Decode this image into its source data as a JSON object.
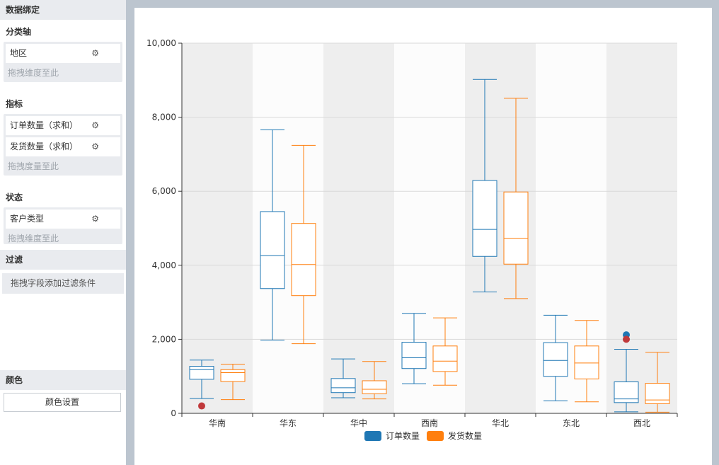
{
  "panel": {
    "data_binding": "数据绑定",
    "category_axis": {
      "title": "分类轴",
      "fields": [
        {
          "label": "地区"
        }
      ],
      "hint": "拖拽维度至此"
    },
    "metrics": {
      "title": "指标",
      "fields": [
        {
          "label": "订单数量（求和）"
        },
        {
          "label": "发货数量（求和）"
        }
      ],
      "hint": "拖拽度量至此"
    },
    "state": {
      "title": "状态",
      "fields": [
        {
          "label": "客户类型"
        }
      ],
      "hint": "拖拽维度至此"
    },
    "filter": {
      "title": "过滤",
      "hint": "拖拽字段添加过滤条件"
    },
    "color": {
      "title": "颜色",
      "button": "颜色设置"
    },
    "icons": {
      "gear": "gear-icon"
    }
  },
  "chart_data": {
    "type": "boxplot",
    "categories": [
      "华南",
      "华东",
      "华中",
      "西南",
      "华北",
      "东北",
      "西北"
    ],
    "ylim": [
      0,
      10000
    ],
    "yticks": [
      "0",
      "2,000",
      "4,000",
      "6,000",
      "8,000",
      "10,000"
    ],
    "grid": true,
    "legend_position": "bottom",
    "band_colors": [
      "#eeeeee",
      "#fcfcfc"
    ],
    "series": [
      {
        "name": "订单数量",
        "color": "#1f77b4",
        "boxes": [
          {
            "min": 400,
            "q1": 920,
            "median": 1180,
            "q3": 1270,
            "max": 1440
          },
          {
            "min": 1980,
            "q1": 3370,
            "median": 4260,
            "q3": 5450,
            "max": 7660
          },
          {
            "min": 420,
            "q1": 560,
            "median": 690,
            "q3": 940,
            "max": 1470
          },
          {
            "min": 800,
            "q1": 1210,
            "median": 1500,
            "q3": 1920,
            "max": 2700
          },
          {
            "min": 3280,
            "q1": 4240,
            "median": 4970,
            "q3": 6290,
            "max": 9020
          },
          {
            "min": 340,
            "q1": 1000,
            "median": 1430,
            "q3": 1910,
            "max": 2650
          },
          {
            "min": 40,
            "q1": 290,
            "median": 390,
            "q3": 850,
            "max": 1730
          }
        ],
        "outliers": [
          {
            "category": "西北",
            "value": 2120
          }
        ]
      },
      {
        "name": "发货数量",
        "color": "#ff7f0e",
        "boxes": [
          {
            "min": 370,
            "q1": 860,
            "median": 1100,
            "q3": 1180,
            "max": 1330
          },
          {
            "min": 1880,
            "q1": 3180,
            "median": 4020,
            "q3": 5130,
            "max": 7240
          },
          {
            "min": 390,
            "q1": 530,
            "median": 650,
            "q3": 880,
            "max": 1400
          },
          {
            "min": 760,
            "q1": 1130,
            "median": 1410,
            "q3": 1820,
            "max": 2580
          },
          {
            "min": 3100,
            "q1": 4030,
            "median": 4730,
            "q3": 5980,
            "max": 8510
          },
          {
            "min": 310,
            "q1": 930,
            "median": 1360,
            "q3": 1820,
            "max": 2510
          },
          {
            "min": 30,
            "q1": 260,
            "median": 360,
            "q3": 810,
            "max": 1650
          }
        ],
        "outliers": []
      }
    ],
    "highlight_points": [
      {
        "category": "华南",
        "value": 200,
        "color": "#c0393b"
      },
      {
        "category": "西北",
        "value": 2000,
        "color": "#c0393b"
      }
    ]
  }
}
